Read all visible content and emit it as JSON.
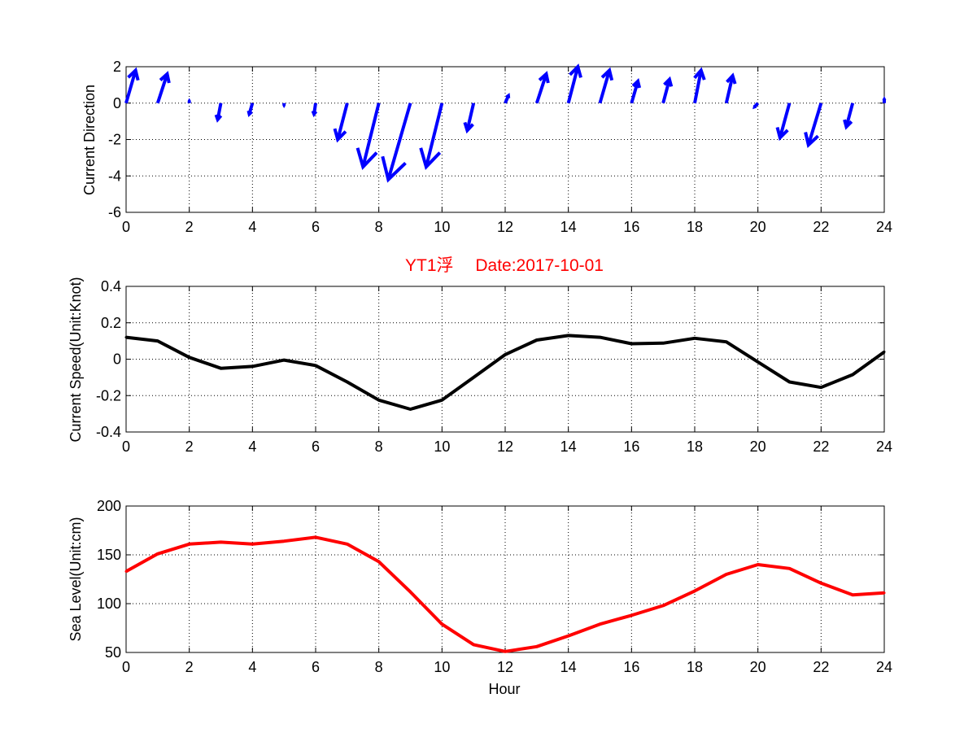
{
  "title": "YT1浮　 Date:2017-10-01",
  "colors": {
    "arrows": "#0000ff",
    "speed": "#000000",
    "sea_level": "#ff0000",
    "title": "#ff0000"
  },
  "chart_data": [
    {
      "type": "quiver",
      "ylabel": "Current Direction",
      "xlabel": "",
      "xlim": [
        0,
        24
      ],
      "ylim": [
        -6,
        2
      ],
      "xticks": [
        "0",
        "2",
        "4",
        "6",
        "8",
        "10",
        "12",
        "14",
        "16",
        "18",
        "20",
        "22",
        "24"
      ],
      "yticks": [
        "2",
        "0",
        "-2",
        "-4",
        "-6"
      ],
      "grid": true,
      "arrows": [
        {
          "x": 0,
          "tip_x": 0.3,
          "tip_y": 1.8
        },
        {
          "x": 1,
          "tip_x": 1.3,
          "tip_y": 1.6
        },
        {
          "x": 2,
          "tip_x": 2.0,
          "tip_y": 0.1
        },
        {
          "x": 3,
          "tip_x": 2.9,
          "tip_y": -0.9
        },
        {
          "x": 4,
          "tip_x": 3.9,
          "tip_y": -0.6
        },
        {
          "x": 5,
          "tip_x": 5.0,
          "tip_y": -0.1
        },
        {
          "x": 6,
          "tip_x": 5.95,
          "tip_y": -0.6
        },
        {
          "x": 7,
          "tip_x": 6.7,
          "tip_y": -2.0
        },
        {
          "x": 8,
          "tip_x": 7.5,
          "tip_y": -3.5
        },
        {
          "x": 9,
          "tip_x": 8.3,
          "tip_y": -4.2
        },
        {
          "x": 10,
          "tip_x": 9.5,
          "tip_y": -3.5
        },
        {
          "x": 11,
          "tip_x": 10.8,
          "tip_y": -1.5
        },
        {
          "x": 12,
          "tip_x": 12.1,
          "tip_y": 0.4
        },
        {
          "x": 13,
          "tip_x": 13.3,
          "tip_y": 1.6
        },
        {
          "x": 14,
          "tip_x": 14.3,
          "tip_y": 2.0
        },
        {
          "x": 15,
          "tip_x": 15.3,
          "tip_y": 1.8
        },
        {
          "x": 16,
          "tip_x": 16.2,
          "tip_y": 1.2
        },
        {
          "x": 17,
          "tip_x": 17.2,
          "tip_y": 1.3
        },
        {
          "x": 18,
          "tip_x": 18.2,
          "tip_y": 1.8
        },
        {
          "x": 19,
          "tip_x": 19.2,
          "tip_y": 1.5
        },
        {
          "x": 20,
          "tip_x": 19.9,
          "tip_y": -0.2
        },
        {
          "x": 21,
          "tip_x": 20.7,
          "tip_y": -1.9
        },
        {
          "x": 22,
          "tip_x": 21.6,
          "tip_y": -2.3
        },
        {
          "x": 23,
          "tip_x": 22.8,
          "tip_y": -1.3
        },
        {
          "x": 24,
          "tip_x": 24.0,
          "tip_y": 0.2
        }
      ]
    },
    {
      "type": "line",
      "title": "YT1浮　 Date:2017-10-01",
      "ylabel": "Current Speed(Unit:Knot)",
      "xlabel": "",
      "xlim": [
        0,
        24
      ],
      "ylim": [
        -0.4,
        0.4
      ],
      "xticks": [
        "0",
        "2",
        "4",
        "6",
        "8",
        "10",
        "12",
        "14",
        "16",
        "18",
        "20",
        "22",
        "24"
      ],
      "yticks": [
        "0.4",
        "0.2",
        "0",
        "-0.2",
        "-0.4"
      ],
      "grid": true,
      "x": [
        0,
        1,
        2,
        3,
        4,
        5,
        6,
        7,
        8,
        9,
        10,
        11,
        12,
        13,
        14,
        15,
        16,
        17,
        18,
        19,
        20,
        21,
        22,
        23,
        24
      ],
      "values": [
        0.12,
        0.1,
        0.01,
        -0.05,
        -0.04,
        -0.005,
        -0.035,
        -0.125,
        -0.225,
        -0.275,
        -0.225,
        -0.1,
        0.025,
        0.105,
        0.13,
        0.12,
        0.085,
        0.088,
        0.115,
        0.095,
        -0.015,
        -0.125,
        -0.155,
        -0.085,
        0.04
      ]
    },
    {
      "type": "line",
      "ylabel": "Sea Level(Unit:cm)",
      "xlabel": "Hour",
      "xlim": [
        0,
        24
      ],
      "ylim": [
        50,
        200
      ],
      "xticks": [
        "0",
        "2",
        "4",
        "6",
        "8",
        "10",
        "12",
        "14",
        "16",
        "18",
        "20",
        "22",
        "24"
      ],
      "yticks": [
        "200",
        "150",
        "100",
        "50"
      ],
      "grid": true,
      "x": [
        0,
        1,
        2,
        3,
        4,
        5,
        6,
        7,
        8,
        9,
        10,
        11,
        12,
        13,
        14,
        15,
        16,
        17,
        18,
        19,
        20,
        21,
        22,
        23,
        24
      ],
      "values": [
        133,
        151,
        161,
        163,
        161,
        164,
        168,
        161,
        143,
        112,
        79,
        58,
        51,
        56,
        67,
        79,
        88,
        98,
        113,
        130,
        140,
        136,
        121,
        109,
        111
      ]
    }
  ]
}
